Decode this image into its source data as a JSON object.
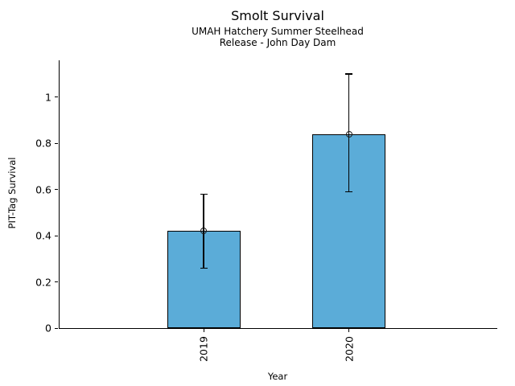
{
  "chart_data": {
    "type": "bar",
    "title": "Smolt Survival",
    "subtitle_line1": "UMAH Hatchery Summer Steelhead",
    "subtitle_line2": "Release - John Day Dam",
    "xlabel": "Year",
    "ylabel": "PIT-Tag Survival",
    "categories": [
      "2019",
      "2020"
    ],
    "values": [
      0.42,
      0.84
    ],
    "error_low": [
      0.26,
      0.59
    ],
    "error_high": [
      0.58,
      1.1
    ],
    "yticks": [
      0,
      0.2,
      0.4,
      0.6,
      0.8,
      1
    ],
    "ytick_labels": [
      "0",
      "0.2",
      "0.4",
      "0.6",
      "0.8",
      "1"
    ],
    "ylim": [
      0,
      1.16
    ],
    "grid": false,
    "legend": "none",
    "bar_color": "#5BACD8",
    "bar_edge_color": "#000000",
    "error_color": "#000000",
    "marker": "open-circle"
  }
}
